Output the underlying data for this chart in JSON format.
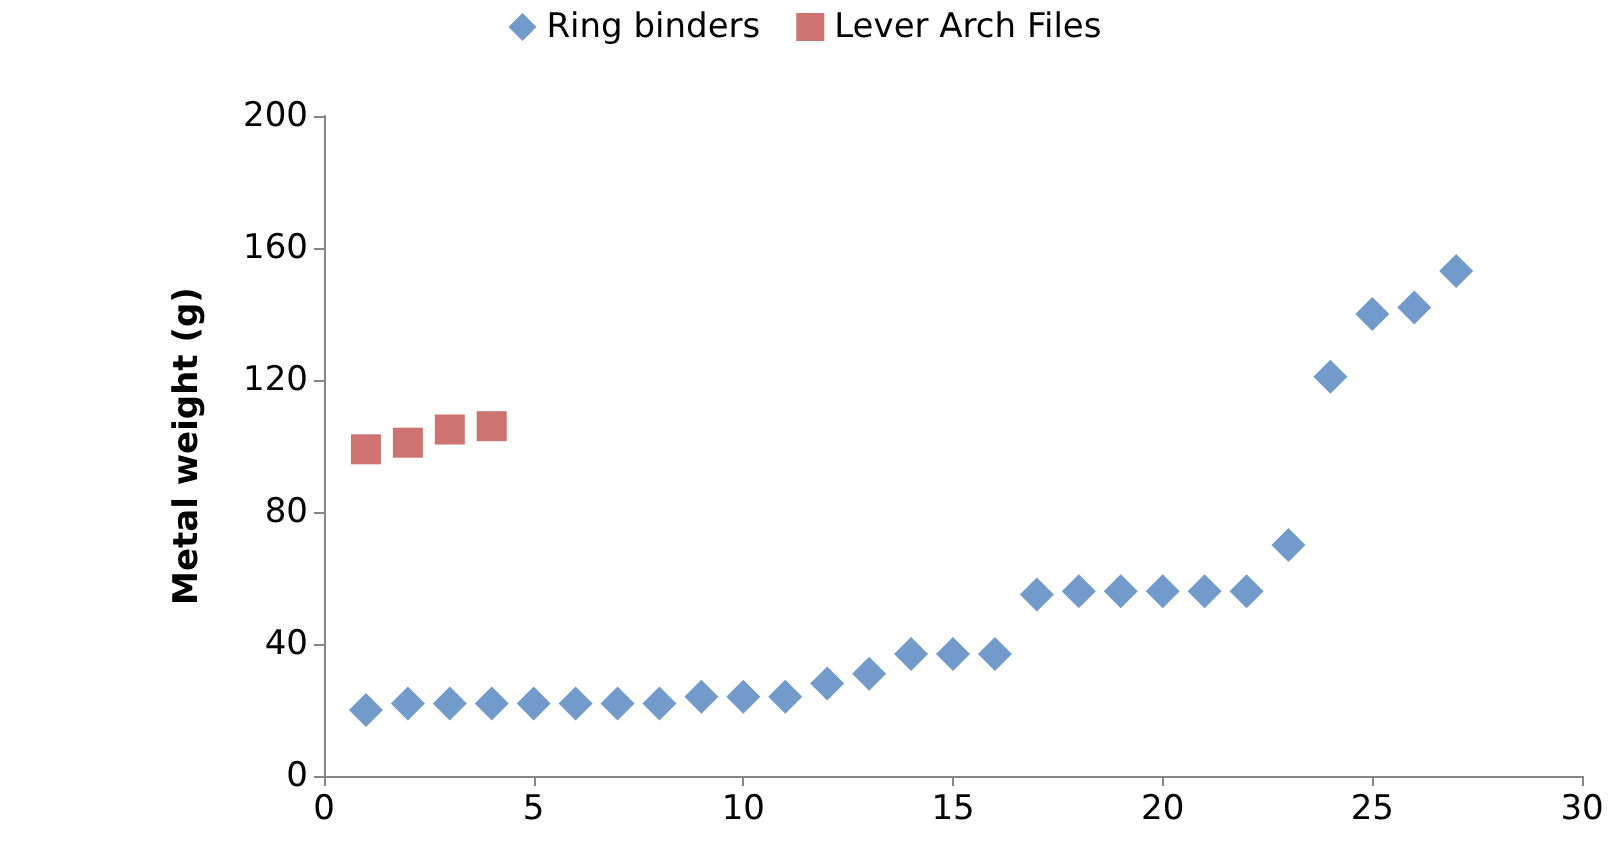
{
  "chart_data": {
    "type": "scatter",
    "ylabel": "Metal weight (g)",
    "xlim": [
      0,
      30
    ],
    "xticks": [
      0,
      5,
      10,
      15,
      20,
      25,
      30
    ],
    "ylim": [
      0,
      200
    ],
    "yticks": [
      0,
      40,
      80,
      120,
      160,
      200
    ],
    "grid": false,
    "legend": "top",
    "series": [
      {
        "name": "Ring binders",
        "color": "#4f81bd",
        "marker": "diamond",
        "x": [
          1,
          2,
          3,
          4,
          5,
          6,
          7,
          8,
          9,
          10,
          11,
          12,
          13,
          14,
          15,
          16,
          17,
          18,
          19,
          20,
          21,
          22,
          23,
          24,
          25,
          26,
          27
        ],
        "values": [
          20,
          22,
          22,
          22,
          22,
          22,
          22,
          22,
          24,
          24,
          24,
          28,
          31,
          37,
          37,
          37,
          55,
          56,
          56,
          56,
          56,
          56,
          70,
          121,
          140,
          142,
          153
        ]
      },
      {
        "name": "Lever Arch Files",
        "color": "#c0504d",
        "marker": "square",
        "x": [
          1,
          2,
          3,
          4
        ],
        "values": [
          99,
          101,
          105,
          106
        ]
      }
    ]
  }
}
